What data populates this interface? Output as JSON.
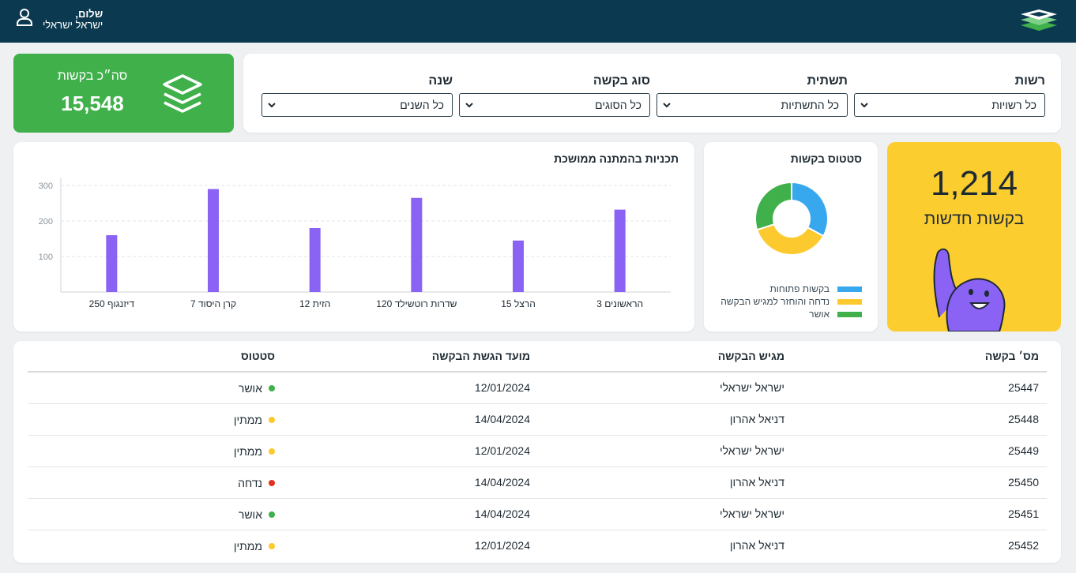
{
  "header": {
    "greeting": "שלום,",
    "user_name": "ישראל ישראלי",
    "user_icon": "user-icon",
    "logo_icon": "layers-logo-icon"
  },
  "total": {
    "label": "סה״כ בקשות",
    "value": "15,548",
    "icon": "layers-icon"
  },
  "filters": [
    {
      "label": "רשות",
      "value": "כל רשויות"
    },
    {
      "label": "תשתית",
      "value": "כל התשתיות"
    },
    {
      "label": "סוג בקשה",
      "value": "כל הסוגים"
    },
    {
      "label": "שנה",
      "value": "כל השנים"
    }
  ],
  "bar_chart": {
    "title": "תכניות בהמתנה ממושכת"
  },
  "chart_data": [
    {
      "type": "bar",
      "title": "תכניות בהמתנה ממושכת",
      "categories": [
        "דיזנגוף 250",
        "קרן היסוד 7",
        "הזית 12",
        "שדרות רוטשילד 120",
        "הרצל 15",
        "הראשונים 3"
      ],
      "values": [
        160,
        290,
        180,
        265,
        145,
        232
      ],
      "ylim": [
        0,
        300
      ],
      "yticks": [
        100,
        200,
        300
      ],
      "grid": true,
      "color": "#8a63f5"
    },
    {
      "type": "pie",
      "title": "סטטוס בקשות",
      "categories": [
        "בקשות פתוחות",
        "נדחה והוחזר למגיש הבקשה",
        "אושר"
      ],
      "values": [
        33,
        37,
        30
      ],
      "colors": [
        "#38a8ee",
        "#fcca2e",
        "#3fb04a"
      ],
      "legend": "bottom"
    }
  ],
  "status_chart": {
    "title": "סטטוס בקשות",
    "legend": [
      {
        "label": "בקשות פתוחות",
        "color": "#38a8ee"
      },
      {
        "label": "נדחה והוחזר למגיש הבקשה",
        "color": "#fcca2e"
      },
      {
        "label": "אושר",
        "color": "#3fb04a"
      }
    ]
  },
  "new_requests": {
    "value": "1,214",
    "label": "בקשות חדשות",
    "illustration": "waving-character-illustration"
  },
  "table": {
    "headers": [
      "מס׳ בקשה",
      "מגיש הבקשה",
      "מועד הגשת הבקשה",
      "סטטוס"
    ],
    "rows": [
      {
        "id": "25447",
        "applicant": "ישראל ישראלי",
        "date": "12/01/2024",
        "status": "אושר",
        "color": "#3fb04a"
      },
      {
        "id": "25448",
        "applicant": "דניאל אהרון",
        "date": "14/04/2024",
        "status": "ממתין",
        "color": "#fcca2e"
      },
      {
        "id": "25449",
        "applicant": "ישראל ישראלי",
        "date": "12/01/2024",
        "status": "ממתין",
        "color": "#fcca2e"
      },
      {
        "id": "25450",
        "applicant": "דניאל אהרון",
        "date": "14/04/2024",
        "status": "נדחה",
        "color": "#e0321f"
      },
      {
        "id": "25451",
        "applicant": "ישראל ישראלי",
        "date": "14/04/2024",
        "status": "אושר",
        "color": "#3fb04a"
      },
      {
        "id": "25452",
        "applicant": "דניאל אהרון",
        "date": "12/01/2024",
        "status": "ממתין",
        "color": "#fcca2e"
      }
    ]
  }
}
